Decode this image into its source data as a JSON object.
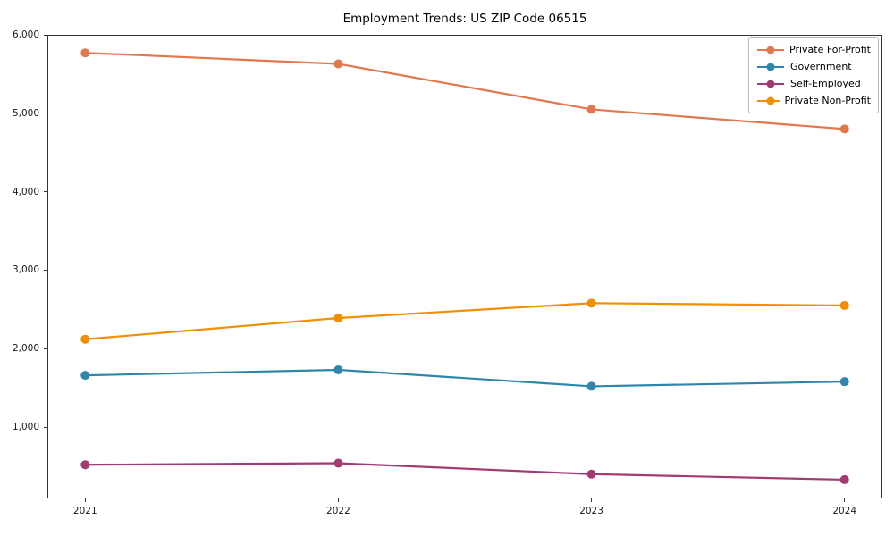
{
  "chart_data": {
    "type": "line",
    "title": "Employment Trends: US ZIP Code 06515",
    "categories": [
      "2021",
      "2022",
      "2023",
      "2024"
    ],
    "series": [
      {
        "name": "Private For-Profit",
        "color": "#E2794E",
        "values": [
          5770,
          5630,
          5050,
          4800
        ]
      },
      {
        "name": "Government",
        "color": "#2E86AB",
        "values": [
          1660,
          1730,
          1520,
          1580
        ]
      },
      {
        "name": "Self-Employed",
        "color": "#A23B72",
        "values": [
          520,
          540,
          400,
          330
        ]
      },
      {
        "name": "Private Non-Profit",
        "color": "#F18F01",
        "values": [
          2120,
          2390,
          2580,
          2550
        ]
      }
    ],
    "xlabel": "",
    "ylabel": "",
    "y_ticks": [
      1000,
      2000,
      3000,
      4000,
      5000,
      6000
    ],
    "y_tick_labels": [
      "1,000",
      "2,000",
      "3,000",
      "4,000",
      "5,000",
      "6,000"
    ],
    "ylim": [
      90,
      6000
    ],
    "grid": false,
    "legend_position": "upper-right",
    "marker": "circle",
    "background_color": "#ffffff",
    "spine_color": "#333333"
  }
}
